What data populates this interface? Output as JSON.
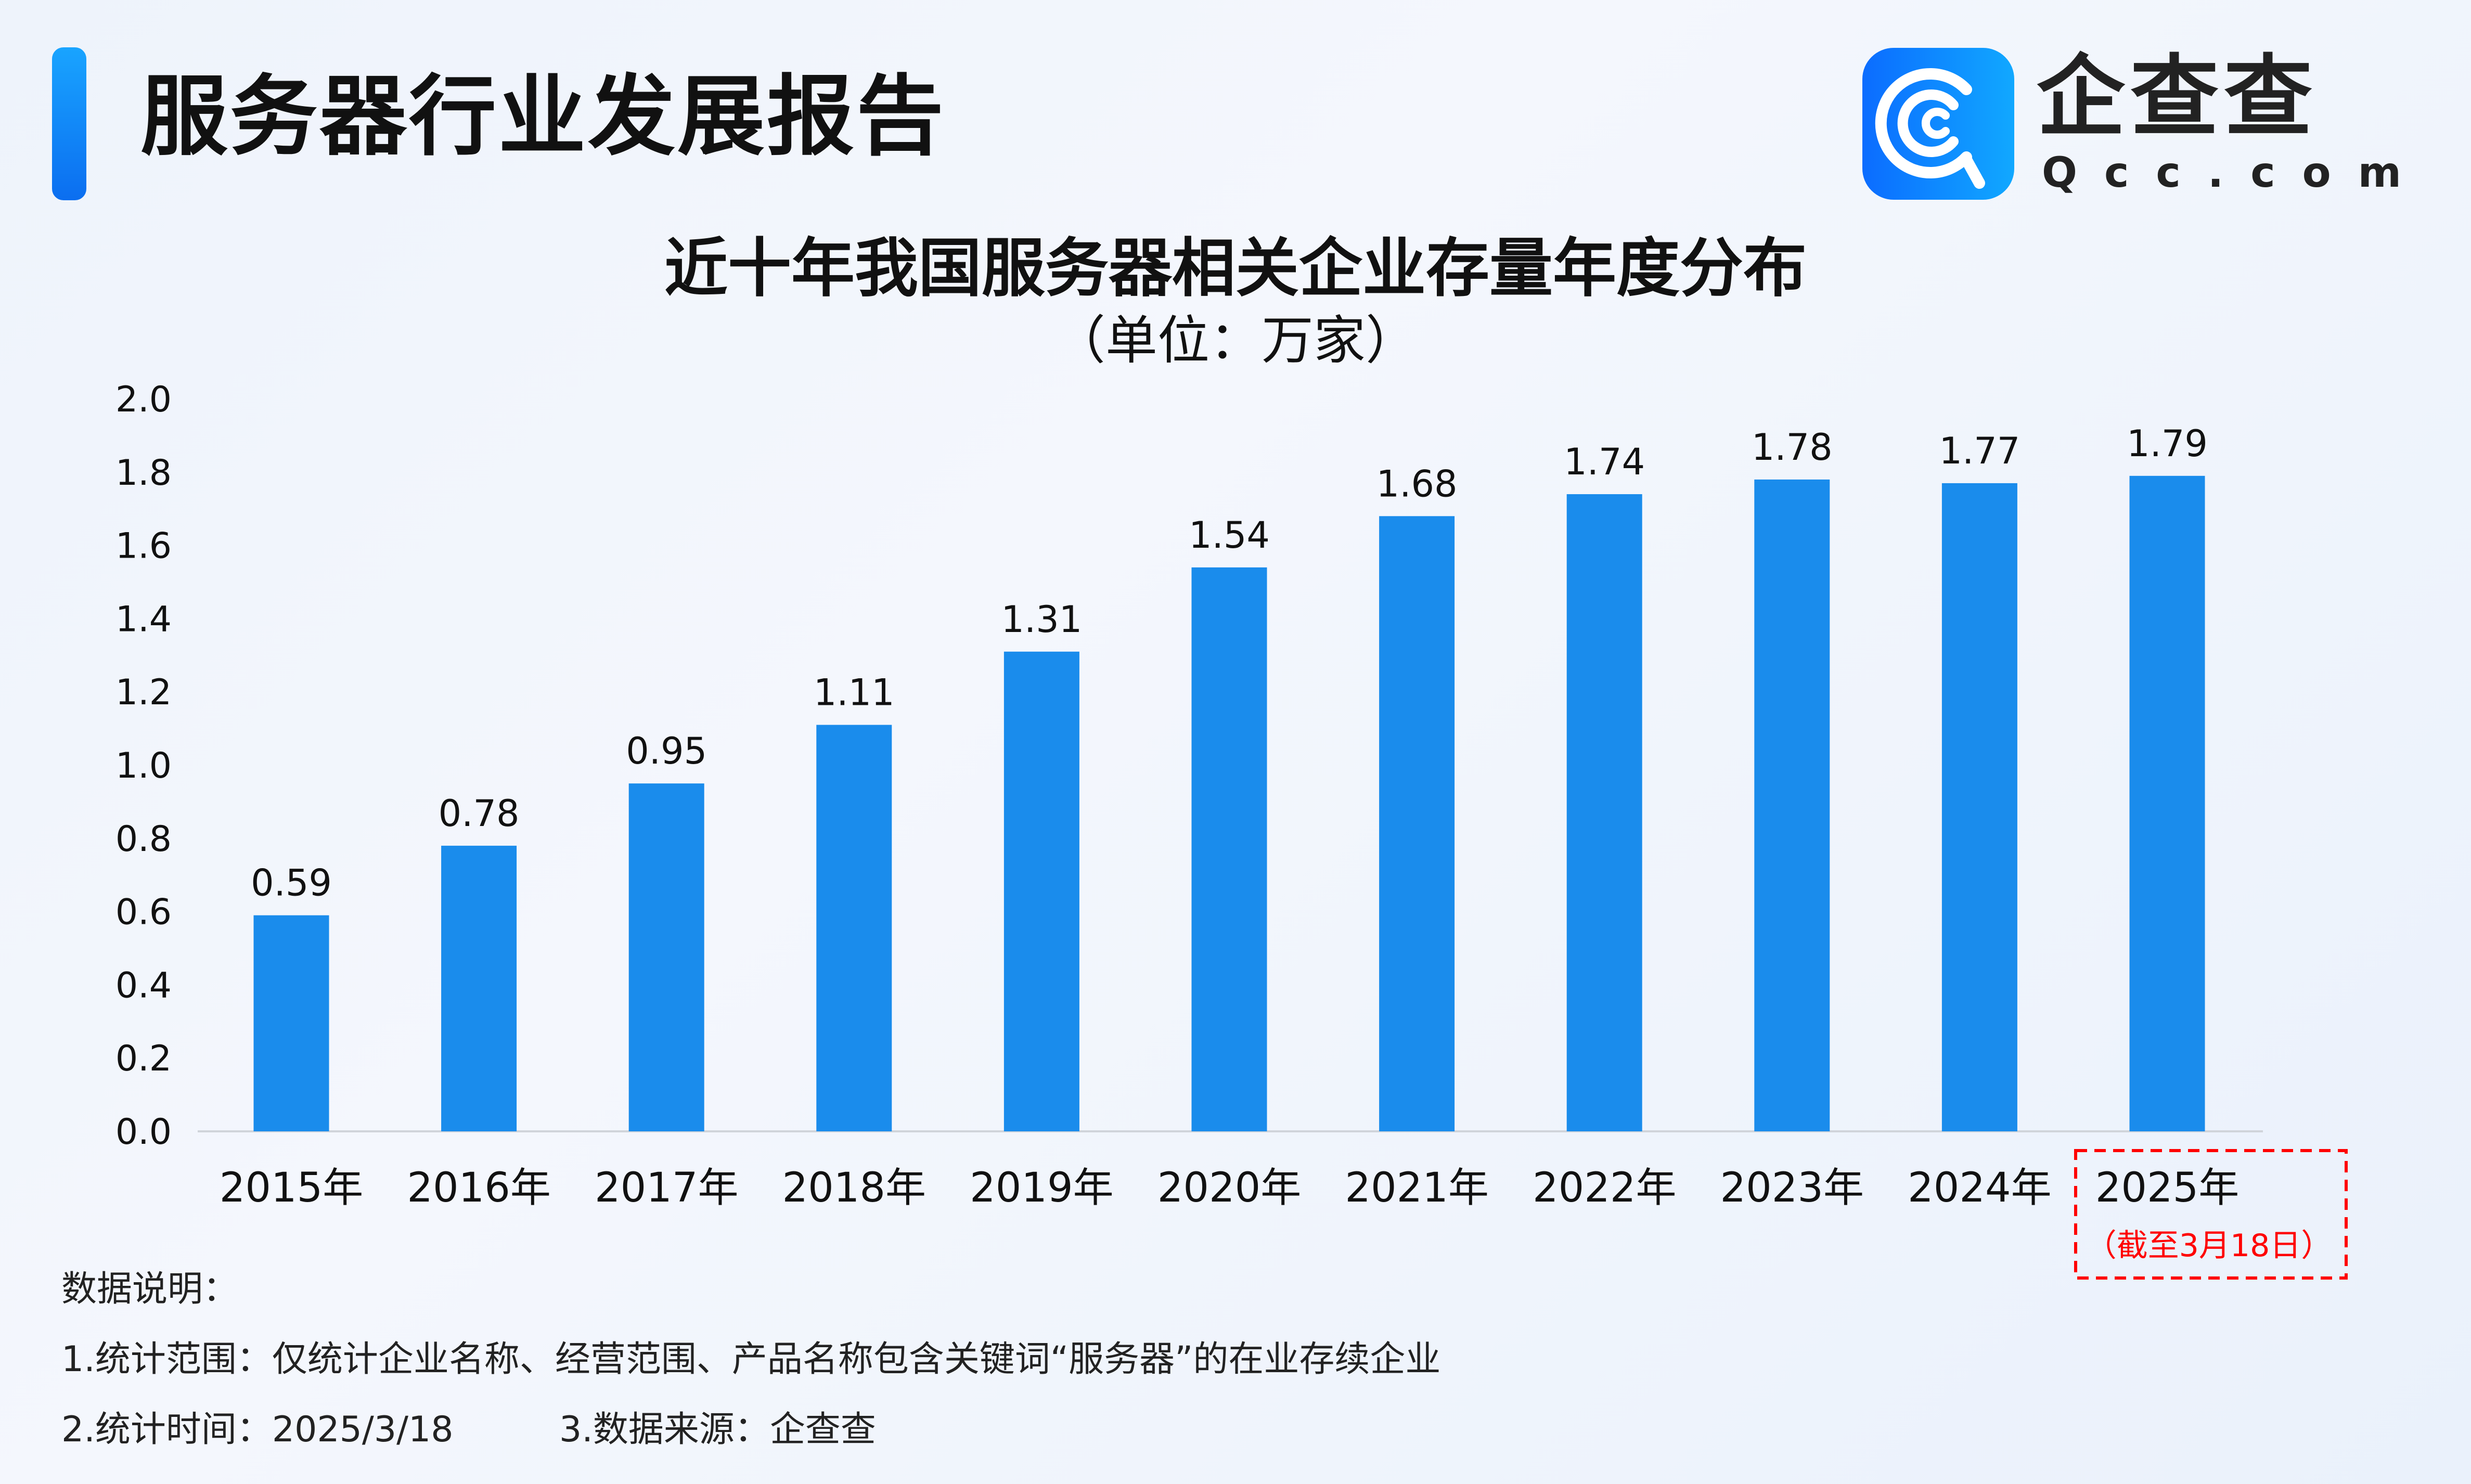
{
  "header": {
    "title": "服务器行业发展报告"
  },
  "logo": {
    "cn": "企查查",
    "en": "Qcc.com",
    "colors": [
      "#0b6cff",
      "#11a8ff"
    ]
  },
  "chart_data": {
    "type": "bar",
    "title": "近十年我国服务器相关企业存量年度分布",
    "subtitle": "（单位：万家）",
    "categories": [
      "2015年",
      "2016年",
      "2017年",
      "2018年",
      "2019年",
      "2020年",
      "2021年",
      "2022年",
      "2023年",
      "2024年",
      "2025年"
    ],
    "values": [
      0.59,
      0.78,
      0.95,
      1.11,
      1.31,
      1.54,
      1.68,
      1.74,
      1.78,
      1.77,
      1.79
    ],
    "data_labels": [
      "0.59",
      "0.78",
      "0.95",
      "1.11",
      "1.31",
      "1.54",
      "1.68",
      "1.74",
      "1.78",
      "1.77",
      "1.79"
    ],
    "ylim": [
      0,
      2.0
    ],
    "yticks": [
      "0.0",
      "0.2",
      "0.4",
      "0.6",
      "0.8",
      "1.0",
      "1.2",
      "1.4",
      "1.6",
      "1.8",
      "2.0"
    ],
    "grid": false,
    "bar_color": "#1a8cec",
    "annotation": {
      "category": "2025年",
      "text": "（截至3月18日）",
      "color": "#ff0000"
    }
  },
  "notes": {
    "heading": "数据说明：",
    "line1": "1.统计范围：仅统计企业名称、经营范围、产品名称包含关键词“服务器”的在业存续企业",
    "line2a": "2.统计时间：2025/3/18",
    "line2b": "3.数据来源：企查查"
  }
}
